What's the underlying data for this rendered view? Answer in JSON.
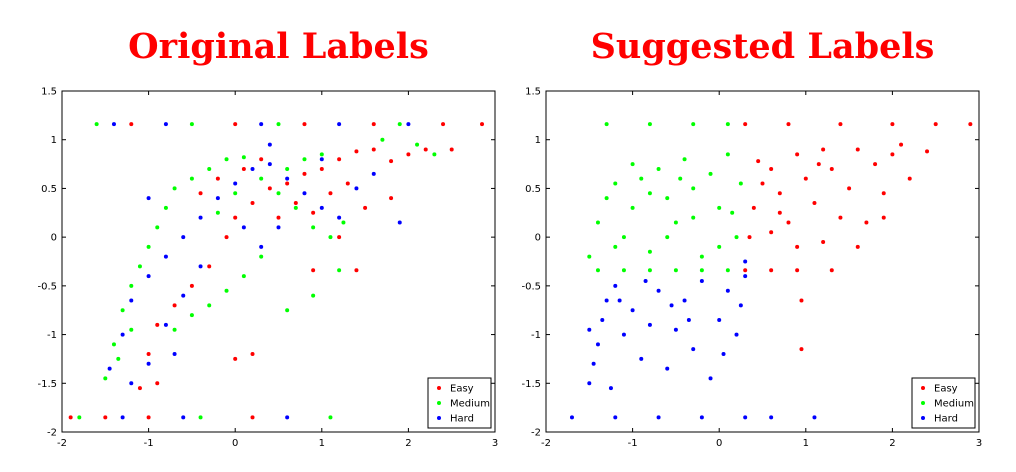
{
  "chart_data": [
    {
      "type": "scatter",
      "title": "Original Labels",
      "xlabel": "",
      "ylabel": "",
      "xlim": [
        -2,
        3
      ],
      "ylim": [
        -2,
        1.5
      ],
      "xticks": [
        "-2",
        "-1",
        "0",
        "1",
        "2",
        "3"
      ],
      "yticks": [
        "-2",
        "-1.5",
        "-1",
        "-0.5",
        "0",
        "0.5",
        "1",
        "1.5"
      ],
      "grid": false,
      "legend_position": "bottom-right",
      "colors": {
        "Easy": "#ff0000",
        "Medium": "#00ff00",
        "Hard": "#0000ff"
      },
      "series": [
        {
          "name": "Easy",
          "mode": "mixed",
          "points": [
            [
              -1.9,
              -1.85
            ],
            [
              -1.5,
              -1.85
            ],
            [
              -1.0,
              -1.85
            ],
            [
              0.2,
              -1.85
            ],
            [
              -1.2,
              1.16
            ],
            [
              0.0,
              1.16
            ],
            [
              0.8,
              1.16
            ],
            [
              1.6,
              1.16
            ],
            [
              2.4,
              1.16
            ],
            [
              2.85,
              1.16
            ],
            [
              -1.0,
              -1.2
            ],
            [
              -0.9,
              -0.9
            ],
            [
              -0.7,
              -0.7
            ],
            [
              -0.5,
              -0.5
            ],
            [
              -0.3,
              -0.3
            ],
            [
              -0.1,
              0.0
            ],
            [
              0.0,
              0.2
            ],
            [
              0.2,
              0.35
            ],
            [
              0.4,
              0.5
            ],
            [
              0.6,
              0.55
            ],
            [
              0.8,
              0.65
            ],
            [
              1.0,
              0.7
            ],
            [
              1.2,
              0.8
            ],
            [
              1.4,
              0.88
            ],
            [
              1.6,
              0.9
            ],
            [
              1.8,
              0.78
            ],
            [
              2.0,
              0.85
            ],
            [
              2.2,
              0.9
            ],
            [
              2.5,
              0.9
            ],
            [
              0.5,
              0.2
            ],
            [
              0.7,
              0.35
            ],
            [
              0.9,
              0.25
            ],
            [
              1.1,
              0.45
            ],
            [
              1.3,
              0.55
            ],
            [
              1.5,
              0.3
            ],
            [
              -0.4,
              0.45
            ],
            [
              -0.2,
              0.6
            ],
            [
              0.1,
              0.7
            ],
            [
              0.3,
              0.8
            ],
            [
              0.0,
              -1.25
            ],
            [
              0.2,
              -1.2
            ],
            [
              -1.1,
              -1.55
            ],
            [
              -0.9,
              -1.5
            ],
            [
              1.4,
              -0.34
            ],
            [
              0.9,
              -0.34
            ],
            [
              1.2,
              0.0
            ],
            [
              1.8,
              0.4
            ]
          ]
        },
        {
          "name": "Medium",
          "mode": "mixed",
          "points": [
            [
              -1.6,
              1.16
            ],
            [
              -0.5,
              1.16
            ],
            [
              0.5,
              1.16
            ],
            [
              1.9,
              1.16
            ],
            [
              -1.8,
              -1.85
            ],
            [
              -0.4,
              -1.85
            ],
            [
              1.1,
              -1.85
            ],
            [
              -1.5,
              -1.45
            ],
            [
              -1.4,
              -1.1
            ],
            [
              -1.3,
              -0.75
            ],
            [
              -1.2,
              -0.5
            ],
            [
              -1.1,
              -0.3
            ],
            [
              -1.0,
              -0.1
            ],
            [
              -0.9,
              0.1
            ],
            [
              -0.8,
              0.3
            ],
            [
              -0.7,
              0.5
            ],
            [
              -0.5,
              0.6
            ],
            [
              -0.3,
              0.7
            ],
            [
              -0.1,
              0.8
            ],
            [
              0.1,
              0.82
            ],
            [
              0.3,
              0.6
            ],
            [
              0.5,
              0.45
            ],
            [
              0.7,
              0.3
            ],
            [
              0.9,
              0.1
            ],
            [
              1.1,
              0.0
            ],
            [
              0.3,
              -0.2
            ],
            [
              0.1,
              -0.4
            ],
            [
              -0.1,
              -0.55
            ],
            [
              -0.3,
              -0.7
            ],
            [
              -0.5,
              -0.8
            ],
            [
              -0.7,
              -0.95
            ],
            [
              0.6,
              -0.75
            ],
            [
              0.9,
              -0.6
            ],
            [
              0.6,
              0.7
            ],
            [
              0.8,
              0.8
            ],
            [
              1.0,
              0.85
            ],
            [
              1.7,
              1.0
            ],
            [
              2.1,
              0.95
            ],
            [
              2.3,
              0.85
            ],
            [
              -1.35,
              -1.25
            ],
            [
              -1.2,
              -0.95
            ],
            [
              -0.2,
              0.25
            ],
            [
              0.0,
              0.45
            ],
            [
              1.2,
              -0.34
            ],
            [
              1.25,
              0.15
            ]
          ]
        },
        {
          "name": "Hard",
          "mode": "mixed",
          "points": [
            [
              -1.4,
              1.16
            ],
            [
              -0.8,
              1.16
            ],
            [
              0.3,
              1.16
            ],
            [
              1.2,
              1.16
            ],
            [
              2.0,
              1.16
            ],
            [
              -1.3,
              -1.85
            ],
            [
              -0.6,
              -1.85
            ],
            [
              0.6,
              -1.85
            ],
            [
              -1.45,
              -1.35
            ],
            [
              -1.3,
              -1.0
            ],
            [
              -1.2,
              -0.65
            ],
            [
              -1.0,
              -0.4
            ],
            [
              -0.8,
              -0.2
            ],
            [
              -0.6,
              0.0
            ],
            [
              -0.4,
              0.2
            ],
            [
              -0.2,
              0.4
            ],
            [
              0.0,
              0.55
            ],
            [
              0.2,
              0.7
            ],
            [
              0.4,
              0.75
            ],
            [
              0.6,
              0.6
            ],
            [
              0.8,
              0.45
            ],
            [
              1.0,
              0.3
            ],
            [
              1.2,
              0.2
            ],
            [
              1.4,
              0.5
            ],
            [
              1.6,
              0.65
            ],
            [
              1.9,
              0.15
            ],
            [
              -0.6,
              -0.6
            ],
            [
              -0.8,
              -0.9
            ],
            [
              -1.0,
              -1.3
            ],
            [
              -0.4,
              -0.3
            ],
            [
              0.1,
              0.1
            ],
            [
              0.3,
              -0.1
            ],
            [
              0.5,
              0.1
            ],
            [
              1.0,
              0.8
            ],
            [
              0.4,
              0.95
            ],
            [
              -1.0,
              0.4
            ],
            [
              -0.7,
              -1.2
            ],
            [
              -1.2,
              -1.5
            ]
          ]
        }
      ]
    },
    {
      "type": "scatter",
      "title": "Suggested Labels",
      "xlabel": "",
      "ylabel": "",
      "xlim": [
        -2,
        3
      ],
      "ylim": [
        -2,
        1.5
      ],
      "xticks": [
        "-2",
        "-1",
        "0",
        "1",
        "2",
        "3"
      ],
      "yticks": [
        "-2",
        "-1.5",
        "-1",
        "-0.5",
        "0",
        "0.5",
        "1",
        "1.5"
      ],
      "grid": false,
      "legend_position": "bottom-right",
      "colors": {
        "Easy": "#ff0000",
        "Medium": "#00ff00",
        "Hard": "#0000ff"
      },
      "series": [
        {
          "name": "Easy",
          "mode": "mixed",
          "points": [
            [
              0.3,
              1.16
            ],
            [
              0.8,
              1.16
            ],
            [
              1.4,
              1.16
            ],
            [
              2.0,
              1.16
            ],
            [
              2.5,
              1.16
            ],
            [
              2.9,
              1.16
            ],
            [
              0.4,
              0.3
            ],
            [
              0.5,
              0.55
            ],
            [
              0.6,
              0.7
            ],
            [
              0.7,
              0.45
            ],
            [
              0.8,
              0.15
            ],
            [
              0.9,
              0.85
            ],
            [
              1.0,
              0.6
            ],
            [
              1.1,
              0.35
            ],
            [
              1.2,
              0.9
            ],
            [
              1.3,
              0.7
            ],
            [
              1.4,
              0.2
            ],
            [
              1.5,
              0.5
            ],
            [
              1.6,
              0.9
            ],
            [
              1.7,
              0.15
            ],
            [
              1.8,
              0.75
            ],
            [
              1.9,
              0.45
            ],
            [
              2.0,
              0.85
            ],
            [
              2.1,
              0.95
            ],
            [
              2.2,
              0.6
            ],
            [
              2.4,
              0.88
            ],
            [
              0.3,
              -0.34
            ],
            [
              0.6,
              -0.34
            ],
            [
              0.9,
              -0.34
            ],
            [
              1.3,
              -0.34
            ],
            [
              0.35,
              0.0
            ],
            [
              0.6,
              0.05
            ],
            [
              0.9,
              -0.1
            ],
            [
              1.2,
              -0.05
            ],
            [
              0.95,
              -0.65
            ],
            [
              0.95,
              -1.15
            ],
            [
              0.7,
              0.25
            ],
            [
              1.6,
              -0.1
            ],
            [
              1.9,
              0.2
            ],
            [
              0.45,
              0.78
            ],
            [
              1.15,
              0.75
            ]
          ]
        },
        {
          "name": "Medium",
          "mode": "mixed",
          "points": [
            [
              -1.3,
              1.16
            ],
            [
              -0.8,
              1.16
            ],
            [
              -0.3,
              1.16
            ],
            [
              0.1,
              1.16
            ],
            [
              -1.4,
              -0.34
            ],
            [
              -1.1,
              -0.34
            ],
            [
              -0.8,
              -0.34
            ],
            [
              -0.5,
              -0.34
            ],
            [
              -0.2,
              -0.34
            ],
            [
              0.1,
              -0.34
            ],
            [
              -1.4,
              0.15
            ],
            [
              -1.3,
              0.4
            ],
            [
              -1.2,
              0.55
            ],
            [
              -1.1,
              0.0
            ],
            [
              -1.0,
              0.3
            ],
            [
              -0.9,
              0.6
            ],
            [
              -0.8,
              -0.15
            ],
            [
              -0.7,
              0.7
            ],
            [
              -0.6,
              0.4
            ],
            [
              -0.5,
              0.15
            ],
            [
              -0.4,
              0.8
            ],
            [
              -0.3,
              0.5
            ],
            [
              -0.2,
              -0.2
            ],
            [
              -0.1,
              0.65
            ],
            [
              0.0,
              0.3
            ],
            [
              0.1,
              0.85
            ],
            [
              0.2,
              0.0
            ],
            [
              0.25,
              0.55
            ],
            [
              -1.2,
              -0.1
            ],
            [
              -1.0,
              0.75
            ],
            [
              -0.6,
              0.0
            ],
            [
              -0.3,
              0.2
            ],
            [
              0.0,
              -0.1
            ],
            [
              0.15,
              0.25
            ],
            [
              -0.8,
              0.45
            ],
            [
              -1.5,
              -0.2
            ],
            [
              -0.45,
              0.6
            ]
          ]
        },
        {
          "name": "Hard",
          "mode": "mixed",
          "points": [
            [
              -1.7,
              -1.85
            ],
            [
              -1.2,
              -1.85
            ],
            [
              -0.7,
              -1.85
            ],
            [
              -0.2,
              -1.85
            ],
            [
              0.3,
              -1.85
            ],
            [
              0.6,
              -1.85
            ],
            [
              1.1,
              -1.85
            ],
            [
              -1.5,
              -1.5
            ],
            [
              -1.45,
              -1.3
            ],
            [
              -1.4,
              -1.1
            ],
            [
              -1.35,
              -0.85
            ],
            [
              -1.3,
              -0.65
            ],
            [
              -1.2,
              -0.5
            ],
            [
              -1.1,
              -1.0
            ],
            [
              -1.0,
              -0.75
            ],
            [
              -0.9,
              -1.25
            ],
            [
              -0.8,
              -0.9
            ],
            [
              -0.7,
              -0.55
            ],
            [
              -0.6,
              -1.35
            ],
            [
              -0.5,
              -0.95
            ],
            [
              -0.4,
              -0.65
            ],
            [
              -0.3,
              -1.15
            ],
            [
              -0.2,
              -0.45
            ],
            [
              -0.1,
              -1.45
            ],
            [
              0.0,
              -0.85
            ],
            [
              0.1,
              -0.55
            ],
            [
              0.2,
              -1.0
            ],
            [
              0.3,
              -0.4
            ],
            [
              -1.5,
              -0.95
            ],
            [
              -1.25,
              -1.55
            ],
            [
              -0.85,
              -0.45
            ],
            [
              -0.35,
              -0.85
            ],
            [
              0.05,
              -1.2
            ],
            [
              0.25,
              -0.7
            ],
            [
              -0.55,
              -0.7
            ],
            [
              -1.15,
              -0.65
            ],
            [
              0.3,
              -0.25
            ]
          ]
        }
      ]
    }
  ]
}
